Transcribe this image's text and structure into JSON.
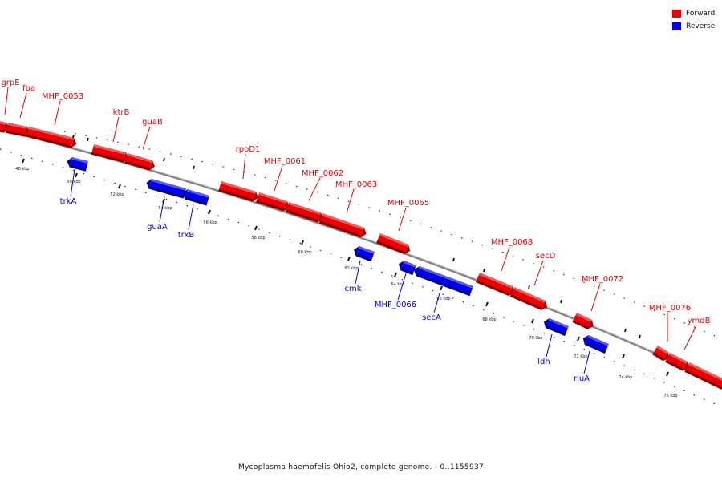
{
  "legend": {
    "items": [
      {
        "label": "Forward",
        "color": "#ee0000"
      },
      {
        "label": "Reverse",
        "color": "#0000ee"
      }
    ]
  },
  "caption": "Mycoplasma haemofelis Ohio2, complete genome. - 0..1155937",
  "colors": {
    "forward": "#ee0000",
    "reverse": "#0000ee",
    "backbone": "#808080"
  },
  "forward_genes": [
    {
      "label": "grpE"
    },
    {
      "label": "fba"
    },
    {
      "label": "MHF_0053"
    },
    {
      "label": "ktrB"
    },
    {
      "label": "guaB"
    },
    {
      "label": "rpoD1"
    },
    {
      "label": "MHF_0061"
    },
    {
      "label": "MHF_0062"
    },
    {
      "label": "MHF_0063"
    },
    {
      "label": "MHF_0065"
    },
    {
      "label": "MHF_0068"
    },
    {
      "label": "secD"
    },
    {
      "label": "MHF_0072"
    },
    {
      "label": "MHF_0076"
    },
    {
      "label": "ymdB"
    }
  ],
  "reverse_genes": [
    {
      "label": "trkA"
    },
    {
      "label": "guaA"
    },
    {
      "label": "trxB"
    },
    {
      "label": "cmk"
    },
    {
      "label": "MHF_0066"
    },
    {
      "label": "secA"
    },
    {
      "label": "ldh"
    },
    {
      "label": "rluA"
    }
  ],
  "scale_labels": [
    "48 kbp",
    "50 kbp",
    "52 kbp",
    "54 kbp",
    "56 kbp",
    "58 kbp",
    "60 kbp",
    "62 kbp",
    "64 kbp",
    "66 kbp",
    "68 kbp",
    "70 kbp",
    "72 kbp",
    "74 kbp",
    "76 kbp"
  ]
}
